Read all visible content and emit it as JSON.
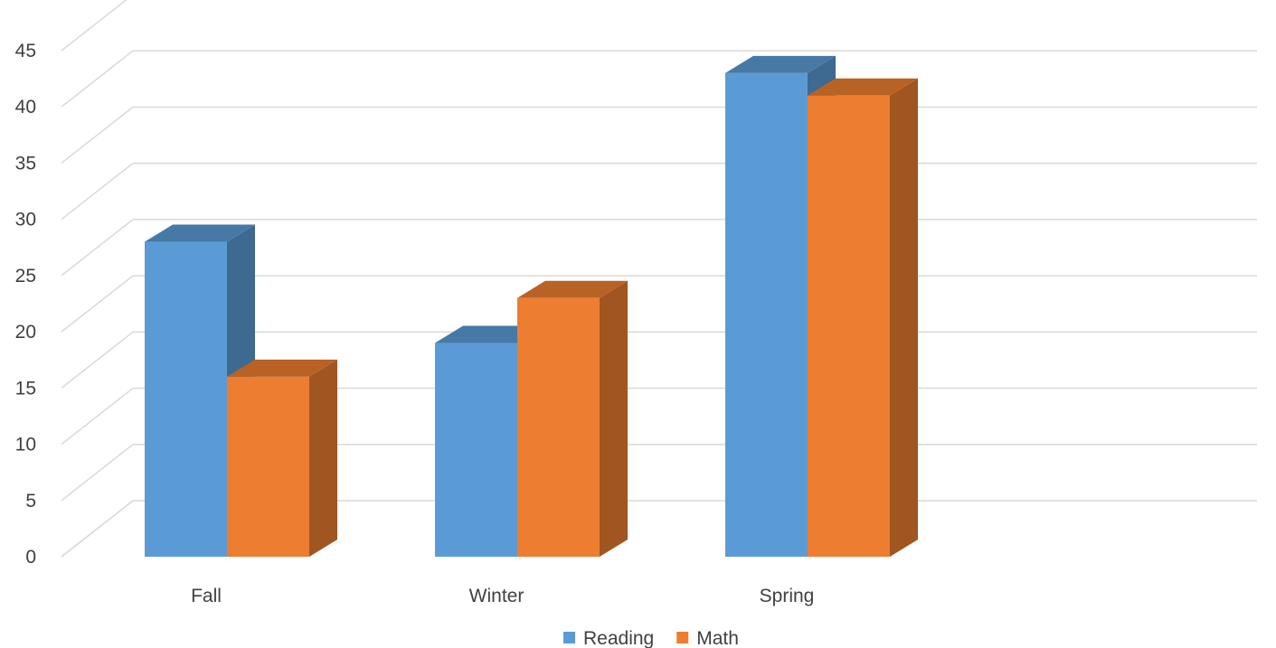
{
  "chart_data": {
    "type": "bar",
    "title": "",
    "xlabel": "",
    "ylabel": "",
    "categories": [
      "Fall",
      "Winter",
      "Spring"
    ],
    "series": [
      {
        "name": "Reading",
        "values": [
          28,
          19,
          43
        ],
        "color": "#5B9BD5"
      },
      {
        "name": "Math",
        "values": [
          16,
          23,
          41
        ],
        "color": "#ED7D31"
      }
    ],
    "ylim": [
      0,
      45
    ],
    "ytick_step": 5,
    "yticks": [
      "0",
      "5",
      "10",
      "15",
      "20",
      "25",
      "30",
      "35",
      "40",
      "45"
    ],
    "grid": true,
    "legend": "bottom",
    "style": "3d-clustered-column"
  }
}
